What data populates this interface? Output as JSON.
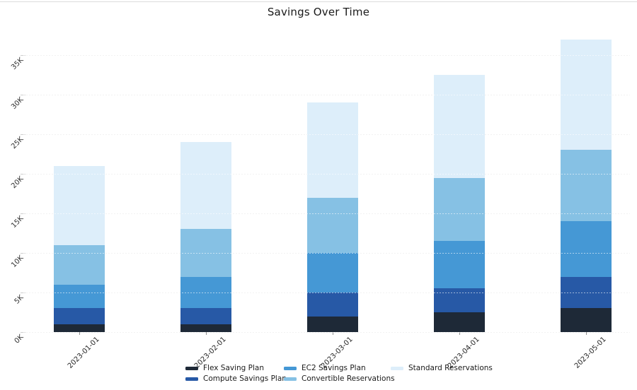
{
  "window": {
    "title": "Savings Over Time"
  },
  "chart_data": {
    "type": "bar",
    "stacked": true,
    "title": "Savings Over Time",
    "categories": [
      "2023-01-01",
      "2023-02-01",
      "2023-03-01",
      "2023-04-01",
      "2023-05-01"
    ],
    "series": [
      {
        "name": "Flex Saving Plan",
        "color": "#1e2937",
        "values": [
          1000,
          1000,
          2000,
          2500,
          3000
        ]
      },
      {
        "name": "Compute Savings Plan",
        "color": "#2759a6",
        "values": [
          2000,
          2000,
          3000,
          3000,
          4000
        ]
      },
      {
        "name": "EC2 Savings Plan",
        "color": "#4598d5",
        "values": [
          3000,
          4000,
          5000,
          6000,
          7000
        ]
      },
      {
        "name": "Convertible Reservations",
        "color": "#86c1e4",
        "values": [
          5000,
          6000,
          7000,
          8000,
          9000
        ]
      },
      {
        "name": "Standard Reservations",
        "color": "#ddeefa",
        "values": [
          10000,
          11000,
          12000,
          13000,
          14000
        ]
      }
    ],
    "stack_totals": [
      21000,
      24000,
      29000,
      32500,
      37000
    ],
    "y_ticks": [
      "0K",
      "5K",
      "10K",
      "15K",
      "20K",
      "25K",
      "30K",
      "35K"
    ],
    "y_axis": {
      "min": 0,
      "max": 39000,
      "tick_step": 5000,
      "unit": "K"
    },
    "x_label_rotation_deg": 45,
    "grid": "horizontal dotted, drawn over bars",
    "legend_position": "bottom-center",
    "legend_columns": [
      [
        "Flex Saving Plan",
        "Compute Savings Plan"
      ],
      [
        "EC2 Savings Plan",
        "Convertible Reservations"
      ],
      [
        "Standard Reservations"
      ]
    ]
  }
}
